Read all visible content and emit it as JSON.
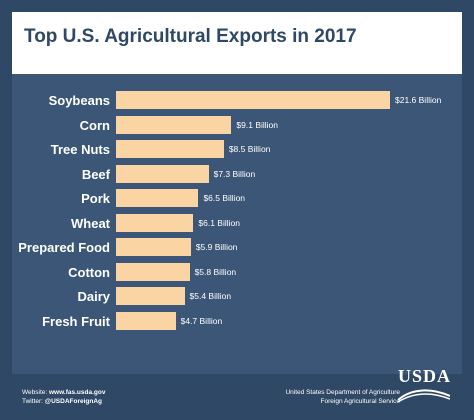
{
  "title": "Top U.S. Agricultural Exports in 2017",
  "chart_data": {
    "type": "bar",
    "orientation": "horizontal",
    "categories": [
      "Soybeans",
      "Corn",
      "Tree Nuts",
      "Beef",
      "Pork",
      "Wheat",
      "Prepared Food",
      "Cotton",
      "Dairy",
      "Fresh Fruit"
    ],
    "values": [
      21.6,
      9.1,
      8.5,
      7.3,
      6.5,
      6.1,
      5.9,
      5.8,
      5.4,
      4.7
    ],
    "value_labels": [
      "$21.6 Billion",
      "$9.1 Billion",
      "$8.5 Billion",
      "$7.3 Billion",
      "$6.5 Billion",
      "$6.1 Billion",
      "$5.9 Billion",
      "$5.8 Billion",
      "$5.4 Billion",
      "$4.7 Billion"
    ],
    "title": "Top U.S. Agricultural Exports in 2017",
    "xlabel": "",
    "ylabel": "",
    "xlim": [
      0,
      21.6
    ],
    "grid": false,
    "colors": {
      "bar": "#fbd4a3",
      "panel": "#3b5677"
    }
  },
  "footer": {
    "website_label": "Website: ",
    "website": "www.fas.usda.gov",
    "twitter_label": "Twitter: ",
    "twitter": "@USDAForeignAg",
    "dept_line1": "United States Department of Agriculture",
    "dept_line2": "Foreign Agricultural Service",
    "logo_text": "USDA"
  },
  "colors": {
    "frame": "#2f4866",
    "title": "#2f4866",
    "background": "#ffffff"
  }
}
